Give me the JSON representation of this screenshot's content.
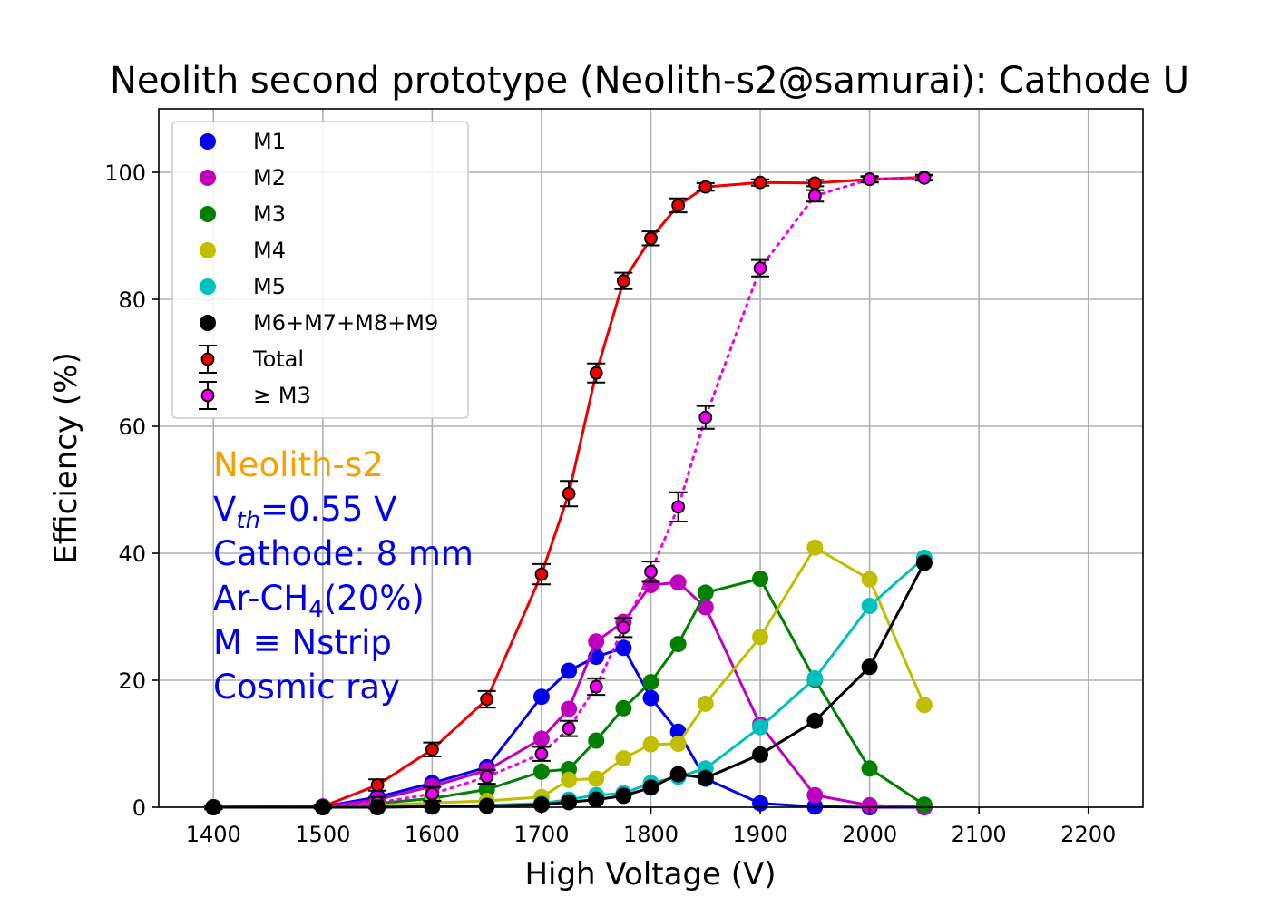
{
  "chart_data": {
    "type": "line",
    "title": "Neolith second prototype (Neolith-s2@samurai): Cathode U",
    "xlabel": "High Voltage (V)",
    "ylabel": "Efficiency (%)",
    "xlim": [
      1350,
      2250
    ],
    "ylim": [
      0,
      110
    ],
    "xticks": [
      1400,
      1500,
      1600,
      1700,
      1800,
      1900,
      2000,
      2100,
      2200
    ],
    "yticks": [
      0,
      20,
      40,
      60,
      80,
      100
    ],
    "grid": true,
    "legend_position": "upper-left",
    "series": [
      {
        "name": "M1",
        "color": "#0000ee",
        "style": "line-marker",
        "x": [
          1400,
          1500,
          1550,
          1600,
          1650,
          1700,
          1725,
          1750,
          1775,
          1800,
          1825,
          1850,
          1900,
          1950,
          2000,
          2050
        ],
        "y": [
          0,
          0.1,
          1.6,
          3.8,
          6.3,
          17.4,
          21.5,
          23.7,
          25.1,
          17.2,
          11.9,
          4.5,
          0.6,
          0.1,
          0,
          0
        ]
      },
      {
        "name": "M2",
        "color": "#bf00bf",
        "style": "line-marker",
        "x": [
          1400,
          1500,
          1550,
          1600,
          1650,
          1700,
          1725,
          1750,
          1775,
          1800,
          1825,
          1850,
          1900,
          1950,
          2000,
          2050
        ],
        "y": [
          0,
          0.1,
          1.2,
          3.3,
          5.8,
          10.8,
          15.5,
          26.1,
          29.2,
          35.0,
          35.4,
          31.5,
          13.0,
          1.9,
          0.3,
          0
        ]
      },
      {
        "name": "M3",
        "color": "#008000",
        "style": "line-marker",
        "x": [
          1400,
          1500,
          1550,
          1600,
          1650,
          1700,
          1725,
          1750,
          1775,
          1800,
          1825,
          1850,
          1900,
          1950,
          2000,
          2050
        ],
        "y": [
          0,
          0,
          0.6,
          1.4,
          2.8,
          5.6,
          6.0,
          10.5,
          15.6,
          19.7,
          25.7,
          33.8,
          36.0,
          20.1,
          6.1,
          0.4
        ]
      },
      {
        "name": "M4",
        "color": "#bfbf00",
        "style": "line-marker",
        "x": [
          1400,
          1500,
          1550,
          1600,
          1650,
          1700,
          1725,
          1750,
          1775,
          1800,
          1825,
          1850,
          1900,
          1950,
          2000,
          2050
        ],
        "y": [
          0,
          0,
          0.3,
          0.7,
          1.0,
          1.6,
          4.3,
          4.5,
          7.7,
          9.9,
          10.0,
          16.3,
          26.8,
          40.9,
          35.9,
          16.1
        ]
      },
      {
        "name": "M5",
        "color": "#00bfbf",
        "style": "line-marker",
        "x": [
          1400,
          1500,
          1550,
          1600,
          1650,
          1700,
          1725,
          1750,
          1775,
          1800,
          1825,
          1850,
          1900,
          1950,
          2000,
          2050
        ],
        "y": [
          0,
          0,
          0,
          0.1,
          0.3,
          0.6,
          1.2,
          1.9,
          2.2,
          3.8,
          4.8,
          6.1,
          12.6,
          20.3,
          31.7,
          39.3
        ]
      },
      {
        "name": "M6+M7+M8+M9",
        "color": "#000000",
        "style": "line-marker",
        "x": [
          1400,
          1500,
          1550,
          1600,
          1650,
          1700,
          1725,
          1750,
          1775,
          1800,
          1825,
          1850,
          1900,
          1950,
          2000,
          2050
        ],
        "y": [
          0,
          0,
          0,
          0.1,
          0.2,
          0.4,
          0.8,
          1.2,
          1.8,
          3.1,
          5.2,
          4.6,
          8.3,
          13.6,
          22.1,
          38.5
        ]
      },
      {
        "name": "Total",
        "color": "#ee0000",
        "style": "errorbar-solid",
        "x": [
          1400,
          1500,
          1550,
          1600,
          1650,
          1700,
          1725,
          1750,
          1775,
          1800,
          1825,
          1850,
          1900,
          1950,
          2000,
          2050
        ],
        "y": [
          0,
          0.1,
          3.5,
          9.1,
          17.0,
          36.7,
          49.4,
          68.4,
          82.9,
          89.6,
          94.8,
          97.7,
          98.4,
          98.3,
          98.9,
          99.2
        ],
        "yerr": [
          0.3,
          0.3,
          0.9,
          1.1,
          1.3,
          1.6,
          2.0,
          1.5,
          1.3,
          1.1,
          1.1,
          0.6,
          0.5,
          0.5,
          0.4,
          0.4
        ]
      },
      {
        "name": "≥ M3",
        "color": "#ee00ee",
        "style": "errorbar-dotted",
        "x": [
          1400,
          1500,
          1550,
          1600,
          1650,
          1700,
          1725,
          1750,
          1775,
          1800,
          1825,
          1850,
          1900,
          1950,
          2000,
          2050
        ],
        "y": [
          0,
          0.1,
          0.7,
          2.1,
          4.8,
          8.4,
          12.4,
          19.0,
          28.3,
          37.1,
          47.3,
          61.4,
          84.9,
          96.3,
          98.9,
          99.1
        ],
        "yerr": [
          0.3,
          0.3,
          0.9,
          1.1,
          1.1,
          1.1,
          1.2,
          1.3,
          1.5,
          1.6,
          2.3,
          1.8,
          1.3,
          0.9,
          0.5,
          0.4
        ]
      }
    ],
    "annotations": {
      "detector": "Neolith-s2",
      "detector_color": "#f5a100",
      "info_color": "#0000ee",
      "vth_prefix": "V",
      "vth_sub": "th",
      "vth_suffix": "=0.55 V",
      "cathode": "Cathode: 8 mm",
      "gas_prefix": "Ar-CH",
      "gas_sub": "4",
      "gas_suffix": "(20%)",
      "mdef": "M ≡ Nstrip",
      "source": "Cosmic ray"
    }
  }
}
